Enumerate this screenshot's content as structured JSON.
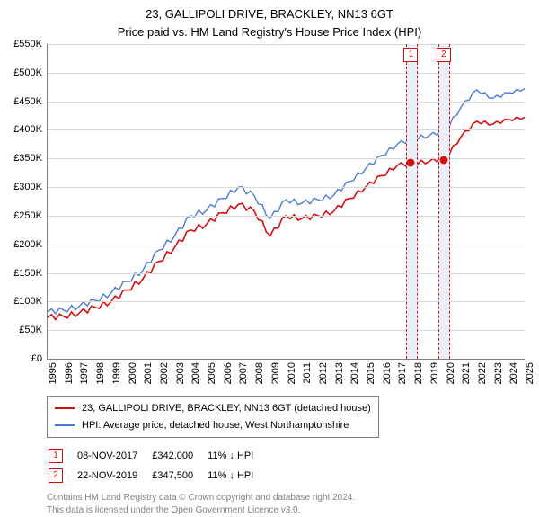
{
  "title_line1": "23, GALLIPOLI DRIVE, BRACKLEY, NN13 6GT",
  "title_line2": "Price paid vs. HM Land Registry's House Price Index (HPI)",
  "chart": {
    "type": "line",
    "background_color": "#ffffff",
    "grid_color": "#d9d9d9",
    "axis_color": "#808080",
    "ylim": [
      0,
      550000
    ],
    "ytick_step": 50000,
    "ytick_labels": [
      "£0",
      "£50K",
      "£100K",
      "£150K",
      "£200K",
      "£250K",
      "£300K",
      "£350K",
      "£400K",
      "£450K",
      "£500K",
      "£550K"
    ],
    "xlim": [
      1995,
      2025
    ],
    "xtick_step": 1,
    "xtick_labels": [
      "1995",
      "1996",
      "1997",
      "1998",
      "1999",
      "2000",
      "2001",
      "2002",
      "2003",
      "2004",
      "2005",
      "2006",
      "2007",
      "2008",
      "2009",
      "2010",
      "2011",
      "2012",
      "2013",
      "2014",
      "2015",
      "2016",
      "2017",
      "2018",
      "2019",
      "2020",
      "2021",
      "2022",
      "2023",
      "2024",
      "2025"
    ],
    "label_fontsize": 11,
    "series": [
      {
        "name": "subject",
        "color": "#d40f0f",
        "width": 1.6,
        "values": {
          "1995": 72000,
          "1996": 74000,
          "1997": 80000,
          "1998": 90000,
          "1999": 100000,
          "2000": 120000,
          "2001": 140000,
          "2002": 170000,
          "2003": 195000,
          "2004": 225000,
          "2005": 235000,
          "2006": 255000,
          "2007": 270000,
          "2008": 258000,
          "2009": 215000,
          "2010": 250000,
          "2011": 245000,
          "2012": 250000,
          "2013": 258000,
          "2014": 280000,
          "2015": 300000,
          "2016": 320000,
          "2017": 338000,
          "2018": 342000,
          "2019": 345000,
          "2020": 350000,
          "2021": 388000,
          "2022": 415000,
          "2023": 410000,
          "2024": 418000,
          "2025": 422000
        }
      },
      {
        "name": "hpi",
        "color": "#4a7dd1",
        "width": 1.4,
        "values": {
          "1995": 82000,
          "1996": 85000,
          "1997": 92000,
          "1998": 102000,
          "1999": 115000,
          "2000": 135000,
          "2001": 155000,
          "2002": 190000,
          "2003": 215000,
          "2004": 250000,
          "2005": 260000,
          "2006": 280000,
          "2007": 300000,
          "2008": 285000,
          "2009": 245000,
          "2010": 278000,
          "2011": 272000,
          "2012": 278000,
          "2013": 286000,
          "2014": 310000,
          "2015": 332000,
          "2016": 355000,
          "2017": 375000,
          "2018": 385000,
          "2019": 390000,
          "2020": 398000,
          "2021": 440000,
          "2022": 470000,
          "2023": 455000,
          "2024": 465000,
          "2025": 472000
        }
      }
    ],
    "sale_markers": [
      {
        "num": "1",
        "year": 2017.85,
        "band_width_years": 0.6,
        "color": "#d40f0f",
        "band_fill": "#eaf0fa",
        "price": 342000
      },
      {
        "num": "2",
        "year": 2019.9,
        "band_width_years": 0.6,
        "color": "#d40f0f",
        "band_fill": "#eaf0fa",
        "price": 347500
      }
    ]
  },
  "legend": {
    "border_color": "#808080",
    "items": [
      {
        "color": "#d40f0f",
        "label": "23, GALLIPOLI DRIVE, BRACKLEY, NN13 6GT (detached house)"
      },
      {
        "color": "#4a7dd1",
        "label": "HPI: Average price, detached house, West Northamptonshire"
      }
    ]
  },
  "sales": [
    {
      "num": "1",
      "color": "#d40f0f",
      "date": "08-NOV-2017",
      "price": "£342,000",
      "delta": "11% ↓ HPI"
    },
    {
      "num": "2",
      "color": "#d40f0f",
      "date": "22-NOV-2019",
      "price": "£347,500",
      "delta": "11% ↓ HPI"
    }
  ],
  "footer_line1": "Contains HM Land Registry data © Crown copyright and database right 2024.",
  "footer_line2": "This data is licensed under the Open Government Licence v3.0.",
  "footer_color": "#808080"
}
